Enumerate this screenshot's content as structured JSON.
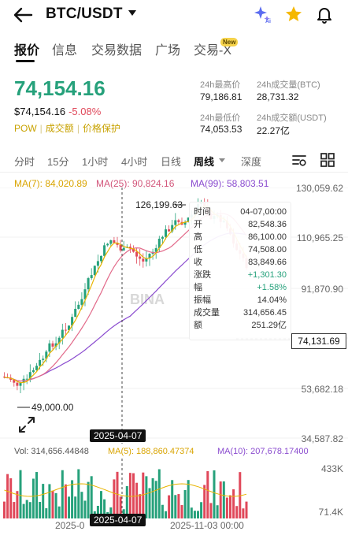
{
  "header": {
    "pair": "BTC/USDT"
  },
  "tabs": [
    {
      "label": "报价",
      "active": true
    },
    {
      "label": "信息"
    },
    {
      "label": "交易数据"
    },
    {
      "label": "广场"
    },
    {
      "label": "交易-X"
    }
  ],
  "new_badge": "New",
  "price": {
    "last": "74,154.16",
    "usd": "$74,154.16",
    "change": "-5.08%",
    "tags": [
      "POW",
      "成交额",
      "价格保护"
    ]
  },
  "stats": {
    "high_label": "24h最高价",
    "high": "79,186.81",
    "vol_btc_label": "24h成交量(BTC)",
    "vol_btc": "28,731.32",
    "low_label": "24h最低价",
    "low": "74,053.53",
    "vol_usdt_label": "24h成交额(USDT)",
    "vol_usdt": "22.27亿"
  },
  "timeframes": [
    "分时",
    "15分",
    "1小时",
    "4小时",
    "日线",
    "周线",
    "深度"
  ],
  "active_timeframe": "周线",
  "ma": {
    "ma7": "MA(7): 84,020.89",
    "ma25": "MA(25): 90,824.16",
    "ma99": "MA(99): 58,803.51"
  },
  "price_axis": [
    "130,059.62",
    "110,965.25",
    "91,870.90",
    "53,682.18",
    "34,587.82"
  ],
  "chart_labels": {
    "high_mark": "126,199.63",
    "low_mark": "49,000.00",
    "last_price": "74,131.69"
  },
  "crosshair_date": "2025-04-07",
  "tooltip": [
    {
      "k": "时间",
      "v": "04-07,00:00"
    },
    {
      "k": "开",
      "v": "82,548.36"
    },
    {
      "k": "高",
      "v": "86,100.00"
    },
    {
      "k": "低",
      "v": "74,508.00"
    },
    {
      "k": "收",
      "v": "83,849.66"
    },
    {
      "k": "涨跌",
      "v": "+1,301.30",
      "green": true
    },
    {
      "k": "幅",
      "v": "+1.58%",
      "green": true
    },
    {
      "k": "振幅",
      "v": "14.04%"
    },
    {
      "k": "成交量",
      "v": "314,656.45"
    },
    {
      "k": "额",
      "v": "251.29亿"
    }
  ],
  "volume": {
    "vol": "Vol: 314,656.44848",
    "ma5": "MA(5): 188,860.47374",
    "ma10": "MA(10): 207,678.17400",
    "axis_top": "433K",
    "axis_bottom": "71.4K"
  },
  "x_axis": {
    "left": "2025-0",
    "crosshair": "2025-04-07",
    "right": "2025-11-03 00:00"
  },
  "watermark": "BINA",
  "colors": {
    "up": "#26a17b",
    "down": "#e0485a",
    "ma7": "#e8b400",
    "ma25": "#e26a8a",
    "ma99": "#8a4bcf"
  }
}
